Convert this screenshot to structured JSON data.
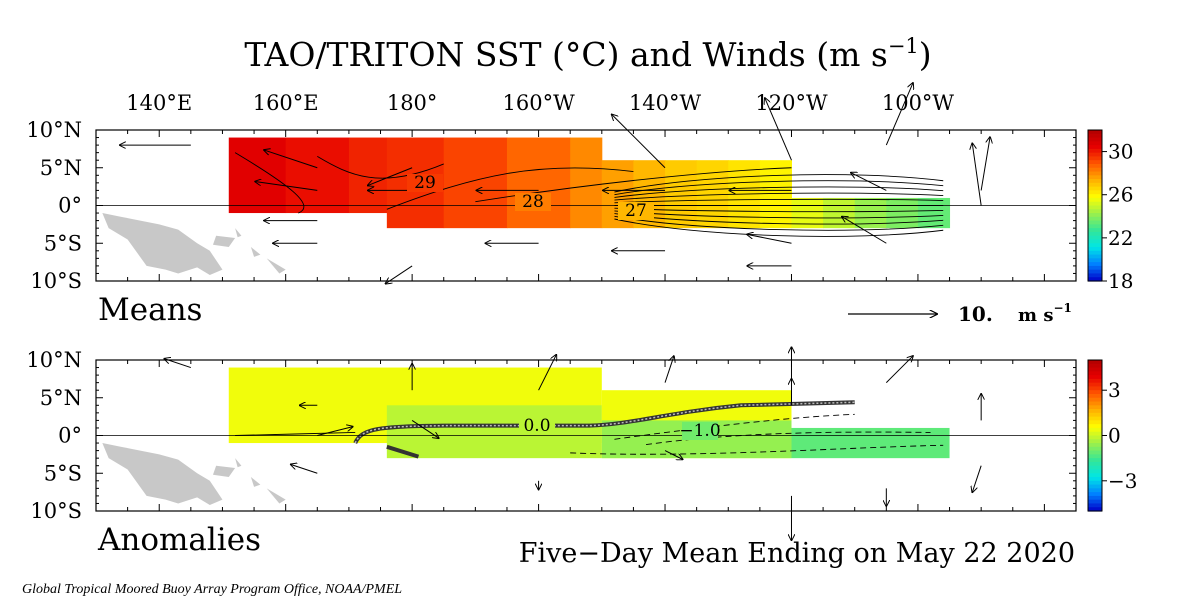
{
  "title": "TAO/TRITON SST (°C) and Winds (m s",
  "title_superscript": "−1",
  "title_close": ")",
  "longitude_ticks": [
    "140°E",
    "160°E",
    "180°",
    "160°W",
    "140°W",
    "120°W",
    "100°W"
  ],
  "latitude_ticks": [
    "10°N",
    "5°N",
    "0°",
    "5°S",
    "10°S"
  ],
  "wind_scale": {
    "value_label": "10.",
    "unit_label": "m s",
    "unit_superscript": "−1",
    "reference_speed_m_s": 10
  },
  "date_caption": "Five−Day Mean Ending on May 22 2020",
  "credit": "Global Tropical Moored Buoy Array Program Office, NOAA/PMEL",
  "chart_data": [
    {
      "type": "heatmap",
      "panel": "Means",
      "label": "Means",
      "quantity": "SST (°C) with wind vectors",
      "x_axis": {
        "ticks": [
          "140°E",
          "160°E",
          "180°",
          "160°W",
          "140°W",
          "120°W",
          "100°W"
        ],
        "range_deg_east": [
          130,
          285
        ]
      },
      "y_axis": {
        "ticks": [
          "10°N",
          "5°N",
          "0°",
          "5°S",
          "10°S"
        ],
        "range_deg_lat": [
          -10,
          10
        ]
      },
      "colorbar": {
        "ticks": [
          "30",
          "26",
          "22",
          "18"
        ],
        "range": [
          18,
          32
        ],
        "colors": [
          "#0000c8",
          "#0080ff",
          "#00e6e6",
          "#33e699",
          "#99f04d",
          "#ffff00",
          "#ffb000",
          "#ff5500",
          "#e60000",
          "#b00000"
        ]
      },
      "contour_labels": [
        "29",
        "28",
        "27"
      ],
      "sst_regions": [
        {
          "lon": [
            151,
            176
          ],
          "lat": [
            -1,
            9
          ],
          "sst": 30.0
        },
        {
          "lon": [
            176,
            200
          ],
          "lat": [
            -3,
            9
          ],
          "sst": 29.5
        },
        {
          "lon": [
            200,
            210
          ],
          "lat": [
            -3,
            9
          ],
          "sst": 28.4
        },
        {
          "lon": [
            210,
            220
          ],
          "lat": [
            -3,
            6
          ],
          "sst": 27.4
        },
        {
          "lon": [
            220,
            240
          ],
          "lat": [
            -3,
            6
          ],
          "sst": 26.8
        },
        {
          "lon": [
            240,
            265
          ],
          "lat": [
            -3,
            1
          ],
          "sst": 25.0
        }
      ],
      "wind_vectors": [
        {
          "lon": 165,
          "lat": 2,
          "u": -7,
          "v": 1
        },
        {
          "lon": 165,
          "lat": 5,
          "u": -6,
          "v": 2
        },
        {
          "lon": 165,
          "lat": -2,
          "u": -6,
          "v": 0
        },
        {
          "lon": 165,
          "lat": -5,
          "u": -5,
          "v": 0
        },
        {
          "lon": 180,
          "lat": 5,
          "u": -5,
          "v": -2
        },
        {
          "lon": 180,
          "lat": 2,
          "u": -5,
          "v": 0
        },
        {
          "lon": 180,
          "lat": -8,
          "u": -3,
          "v": -2
        },
        {
          "lon": 200,
          "lat": 2,
          "u": -7,
          "v": 0
        },
        {
          "lon": 200,
          "lat": -5,
          "u": -6,
          "v": 0
        },
        {
          "lon": 220,
          "lat": 2,
          "u": -7,
          "v": 0
        },
        {
          "lon": 220,
          "lat": -6,
          "u": -6,
          "v": 0
        },
        {
          "lon": 220,
          "lat": 5,
          "u": -6,
          "v": 6
        },
        {
          "lon": 240,
          "lat": 2,
          "u": -7,
          "v": 0
        },
        {
          "lon": 240,
          "lat": 6,
          "u": -3,
          "v": 7
        },
        {
          "lon": 240,
          "lat": -5,
          "u": -5,
          "v": 1
        },
        {
          "lon": 240,
          "lat": -8,
          "u": -5,
          "v": 0
        },
        {
          "lon": 255,
          "lat": 2,
          "u": -4,
          "v": 2
        },
        {
          "lon": 255,
          "lat": -5,
          "u": -5,
          "v": 3
        },
        {
          "lon": 255,
          "lat": 8,
          "u": 3,
          "v": 7
        },
        {
          "lon": 270,
          "lat": 0,
          "u": -1,
          "v": 7
        },
        {
          "lon": 270,
          "lat": 2,
          "u": 1,
          "v": 6
        },
        {
          "lon": 145,
          "lat": 8,
          "u": -8,
          "v": 0
        }
      ]
    },
    {
      "type": "heatmap",
      "panel": "Anomalies",
      "label": "Anomalies",
      "quantity": "SST anomaly (°C) with wind anomaly vectors",
      "x_axis": {
        "ticks": [
          "140°E",
          "160°E",
          "180°",
          "160°W",
          "140°W",
          "120°W",
          "100°W"
        ],
        "range_deg_east": [
          130,
          285
        ]
      },
      "y_axis": {
        "ticks": [
          "10°N",
          "5°N",
          "0°",
          "5°S",
          "10°S"
        ],
        "range_deg_lat": [
          -10,
          10
        ]
      },
      "colorbar": {
        "ticks": [
          "3",
          "0",
          "−3"
        ],
        "range": [
          -5,
          5
        ],
        "colors": [
          "#0000c8",
          "#0080ff",
          "#00e6e6",
          "#33e699",
          "#99f04d",
          "#ffff00",
          "#ffb000",
          "#ff5500",
          "#e60000",
          "#b00000"
        ]
      },
      "contour_labels": [
        "0.0",
        "−1.0"
      ],
      "anomaly_regions": [
        {
          "lon": [
            151,
            210
          ],
          "lat": [
            -1,
            9
          ],
          "anom": 0.4
        },
        {
          "lon": [
            176,
            210
          ],
          "lat": [
            -3,
            4
          ],
          "anom": -0.2
        },
        {
          "lon": [
            210,
            240
          ],
          "lat": [
            -3,
            6
          ],
          "anom": 0.4
        },
        {
          "lon": [
            210,
            240
          ],
          "lat": [
            -3,
            2
          ],
          "anom": -0.6
        },
        {
          "lon": [
            240,
            265
          ],
          "lat": [
            -3,
            1
          ],
          "anom": -1.2
        }
      ],
      "wind_vectors": [
        {
          "lon": 165,
          "lat": 4,
          "u": -2,
          "v": 0
        },
        {
          "lon": 165,
          "lat": 0,
          "u": 4,
          "v": 1
        },
        {
          "lon": 165,
          "lat": -5,
          "u": -3,
          "v": 1
        },
        {
          "lon": 180,
          "lat": 6,
          "u": 0,
          "v": 3
        },
        {
          "lon": 180,
          "lat": 2,
          "u": 3,
          "v": -2
        },
        {
          "lon": 200,
          "lat": 6,
          "u": 2,
          "v": 4
        },
        {
          "lon": 200,
          "lat": -6,
          "u": 0,
          "v": -1
        },
        {
          "lon": 220,
          "lat": 7,
          "u": 1,
          "v": 3
        },
        {
          "lon": 220,
          "lat": -2,
          "u": 2,
          "v": -1
        },
        {
          "lon": 240,
          "lat": 7,
          "u": 0,
          "v": 4
        },
        {
          "lon": 240,
          "lat": 4,
          "u": 0,
          "v": 3
        },
        {
          "lon": 240,
          "lat": -8,
          "u": 0,
          "v": -5
        },
        {
          "lon": 255,
          "lat": 7,
          "u": 3,
          "v": 3
        },
        {
          "lon": 255,
          "lat": -7,
          "u": 0,
          "v": -2
        },
        {
          "lon": 270,
          "lat": 2,
          "u": 0,
          "v": 3
        },
        {
          "lon": 270,
          "lat": -4,
          "u": -1,
          "v": -3
        },
        {
          "lon": 145,
          "lat": 9,
          "u": -3,
          "v": 1
        }
      ]
    }
  ]
}
